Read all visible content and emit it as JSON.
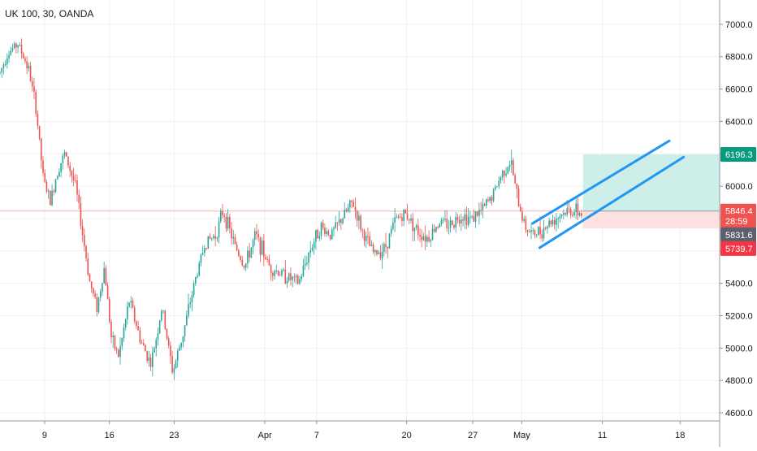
{
  "header": {
    "symbol": "UK 100, 30, OANDA"
  },
  "colors": {
    "up": "#26a69a",
    "down": "#ef5350",
    "channel": "#2196f3",
    "target_zone": "#cdeee9",
    "stop_zone": "#fde0e0",
    "grid": "#eef0f3",
    "axis_text": "#131722",
    "last_price_line": "#f7b4b2",
    "label_target": "#089981",
    "label_entry": "#ef5350",
    "label_current": "#5d606b",
    "label_stop": "#f23645"
  },
  "chart_data": {
    "type": "candlestick",
    "symbol": "UK 100",
    "interval": "30",
    "source": "OANDA",
    "ylim": [
      4550,
      7150
    ],
    "y_ticks": [
      "7000.0",
      "6800.0",
      "6600.0",
      "6400.0",
      "6200.0",
      "6000.0",
      "5800.0",
      "5600.0",
      "5400.0",
      "5200.0",
      "5000.0",
      "4800.0",
      "4600.0"
    ],
    "x_ticks": [
      {
        "label": "9",
        "pos": 0.062
      },
      {
        "label": "16",
        "pos": 0.152
      },
      {
        "label": "23",
        "pos": 0.242
      },
      {
        "label": "Apr",
        "pos": 0.368
      },
      {
        "label": "7",
        "pos": 0.44
      },
      {
        "label": "20",
        "pos": 0.565
      },
      {
        "label": "27",
        "pos": 0.657
      },
      {
        "label": "May",
        "pos": 0.725
      },
      {
        "label": "11",
        "pos": 0.837
      },
      {
        "label": "18",
        "pos": 0.945
      }
    ],
    "price_path": [
      {
        "t": 0.0,
        "p": 6700
      },
      {
        "t": 0.01,
        "p": 6820
      },
      {
        "t": 0.025,
        "p": 6880
      },
      {
        "t": 0.04,
        "p": 6720
      },
      {
        "t": 0.05,
        "p": 6480
      },
      {
        "t": 0.06,
        "p": 6050
      },
      {
        "t": 0.07,
        "p": 5900
      },
      {
        "t": 0.08,
        "p": 6100
      },
      {
        "t": 0.09,
        "p": 6200
      },
      {
        "t": 0.105,
        "p": 6000
      },
      {
        "t": 0.115,
        "p": 5700
      },
      {
        "t": 0.125,
        "p": 5400
      },
      {
        "t": 0.135,
        "p": 5250
      },
      {
        "t": 0.145,
        "p": 5500
      },
      {
        "t": 0.155,
        "p": 5050
      },
      {
        "t": 0.165,
        "p": 4950
      },
      {
        "t": 0.18,
        "p": 5300
      },
      {
        "t": 0.195,
        "p": 5050
      },
      {
        "t": 0.21,
        "p": 4900
      },
      {
        "t": 0.225,
        "p": 5250
      },
      {
        "t": 0.24,
        "p": 4850
      },
      {
        "t": 0.255,
        "p": 5100
      },
      {
        "t": 0.27,
        "p": 5400
      },
      {
        "t": 0.285,
        "p": 5650
      },
      {
        "t": 0.3,
        "p": 5700
      },
      {
        "t": 0.31,
        "p": 5850
      },
      {
        "t": 0.325,
        "p": 5650
      },
      {
        "t": 0.34,
        "p": 5500
      },
      {
        "t": 0.355,
        "p": 5700
      },
      {
        "t": 0.375,
        "p": 5500
      },
      {
        "t": 0.395,
        "p": 5450
      },
      {
        "t": 0.415,
        "p": 5400
      },
      {
        "t": 0.43,
        "p": 5600
      },
      {
        "t": 0.445,
        "p": 5750
      },
      {
        "t": 0.46,
        "p": 5700
      },
      {
        "t": 0.475,
        "p": 5800
      },
      {
        "t": 0.49,
        "p": 5900
      },
      {
        "t": 0.505,
        "p": 5700
      },
      {
        "t": 0.52,
        "p": 5580
      },
      {
        "t": 0.535,
        "p": 5620
      },
      {
        "t": 0.55,
        "p": 5800
      },
      {
        "t": 0.565,
        "p": 5830
      },
      {
        "t": 0.58,
        "p": 5720
      },
      {
        "t": 0.595,
        "p": 5680
      },
      {
        "t": 0.61,
        "p": 5780
      },
      {
        "t": 0.625,
        "p": 5760
      },
      {
        "t": 0.64,
        "p": 5820
      },
      {
        "t": 0.655,
        "p": 5800
      },
      {
        "t": 0.67,
        "p": 5850
      },
      {
        "t": 0.685,
        "p": 5950
      },
      {
        "t": 0.7,
        "p": 6100
      },
      {
        "t": 0.71,
        "p": 6150
      },
      {
        "t": 0.72,
        "p": 5900
      },
      {
        "t": 0.73,
        "p": 5750
      },
      {
        "t": 0.74,
        "p": 5700
      },
      {
        "t": 0.75,
        "p": 5720
      },
      {
        "t": 0.765,
        "p": 5780
      },
      {
        "t": 0.78,
        "p": 5830
      },
      {
        "t": 0.795,
        "p": 5850
      },
      {
        "t": 0.808,
        "p": 5832
      }
    ],
    "channel_lines": [
      {
        "t1": 0.74,
        "p1": 5770,
        "t2": 0.93,
        "p2": 6280
      },
      {
        "t1": 0.75,
        "p1": 5620,
        "t2": 0.95,
        "p2": 6180
      }
    ],
    "position": {
      "t_start": 0.81,
      "t_end": 1.0,
      "target": 6196.3,
      "entry": 5846.4,
      "stop": 5739.7
    },
    "price_labels": [
      {
        "role": "target",
        "text": "6196.3",
        "price": 6196.3
      },
      {
        "role": "entry",
        "text": "5846.4",
        "price": 5846.4
      },
      {
        "role": "countdown",
        "text": "28:59",
        "price": 5785
      },
      {
        "role": "current",
        "text": "5831.6",
        "price": 5700
      },
      {
        "role": "stop",
        "text": "5739.7",
        "price": 5615
      }
    ]
  }
}
